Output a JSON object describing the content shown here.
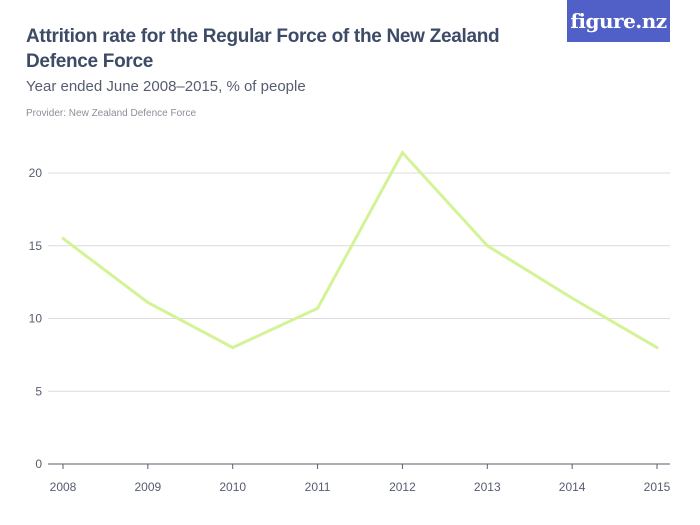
{
  "header": {
    "title": "Attrition rate for the Regular Force of the New Zealand Defence Force",
    "subtitle": "Year ended June 2008–2015, % of people",
    "provider": "Provider: New Zealand Defence Force",
    "logo": "figure.nz",
    "logo_color": "#5060c6"
  },
  "chart_data": {
    "type": "line",
    "title": "Attrition rate for the Regular Force of the New Zealand Defence Force",
    "subtitle": "Year ended June 2008–2015, % of people",
    "categories": [
      "2008",
      "2009",
      "2010",
      "2011",
      "2012",
      "2013",
      "2014",
      "2015"
    ],
    "series": [
      {
        "values": [
          15.5,
          11.1,
          8.0,
          10.7,
          21.4,
          15.0,
          11.4,
          8.0
        ],
        "color": "#d4f396"
      }
    ],
    "yticks": [
      0,
      5,
      10,
      15,
      20
    ],
    "ylim": [
      0,
      21.4
    ],
    "grid": true,
    "xlabel": "",
    "ylabel": ""
  }
}
